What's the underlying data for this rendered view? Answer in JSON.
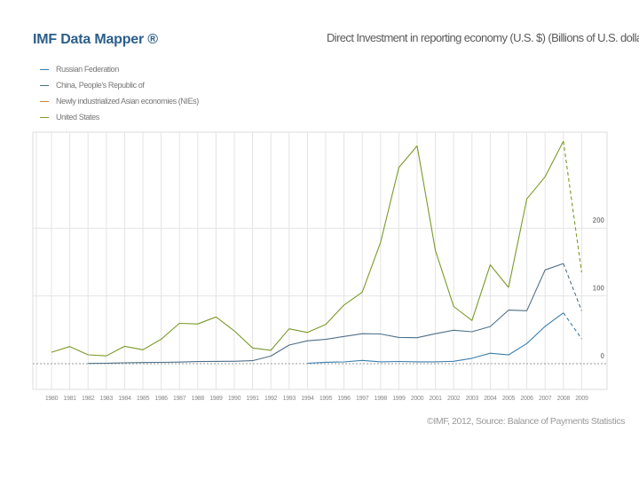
{
  "brand": "IMF Data Mapper ®",
  "source": "©IMF, 2012, Source: Balance of Payments Statistics",
  "chart_data": {
    "type": "line",
    "title": "Direct Investment in reporting economy (U.S. $) (Billions of U.S. dollars)",
    "x_tick_labels": [
      "1980",
      "1981",
      "1982",
      "1983",
      "1984",
      "1985",
      "1986",
      "1987",
      "1988",
      "1989",
      "1990",
      "1991",
      "1992",
      "1993",
      "1994",
      "1995",
      "1996",
      "1997",
      "1998",
      "1999",
      "2000",
      "2001",
      "2002",
      "2003",
      "2004",
      "2005",
      "2006",
      "2007",
      "2008",
      "2009"
    ],
    "y_ticks": [
      0,
      100,
      200
    ],
    "y_tick_labels": [
      "0",
      "100",
      "200"
    ],
    "ylim": [
      -40,
      340
    ],
    "grid": true,
    "series": [
      {
        "name": "Russian Federation",
        "color": "#3a7fae",
        "x": [
          1994,
          1995,
          1996,
          1997,
          1998,
          1999,
          2000,
          2001,
          2002,
          2003,
          2004,
          2005,
          2006,
          2007,
          2008,
          2009
        ],
        "values": [
          0.7,
          2.1,
          2.6,
          4.9,
          2.8,
          3.3,
          2.7,
          2.7,
          3.5,
          8.0,
          15.4,
          12.9,
          29.7,
          55.1,
          75.0,
          36.6
        ]
      },
      {
        "name": "China, People's Republic of",
        "color": "#4e6f87",
        "x": [
          1982,
          1983,
          1984,
          1985,
          1986,
          1987,
          1988,
          1989,
          1990,
          1991,
          1992,
          1993,
          1994,
          1995,
          1996,
          1997,
          1998,
          1999,
          2000,
          2001,
          2002,
          2003,
          2004,
          2005,
          2006,
          2007,
          2008,
          2009
        ],
        "values": [
          0.4,
          0.6,
          1.3,
          1.7,
          1.9,
          2.3,
          3.2,
          3.4,
          3.5,
          4.4,
          11.2,
          27.5,
          33.8,
          35.8,
          40.2,
          44.2,
          43.8,
          38.8,
          38.4,
          44.2,
          49.3,
          47.1,
          54.9,
          79.1,
          78.1,
          138.4,
          147.8,
          78.2
        ]
      },
      {
        "name": "Newly industrialized Asian economies (NIEs)",
        "color": "#c98a3a",
        "x": [],
        "values": []
      },
      {
        "name": "United States",
        "color": "#7a9a2a",
        "x": [
          1980,
          1981,
          1982,
          1983,
          1984,
          1985,
          1986,
          1987,
          1988,
          1989,
          1990,
          1991,
          1992,
          1993,
          1994,
          1995,
          1996,
          1997,
          1998,
          1999,
          2000,
          2001,
          2002,
          2003,
          2004,
          2005,
          2006,
          2007,
          2008,
          2009
        ],
        "values": [
          16.9,
          25.2,
          13.1,
          11.5,
          25.6,
          20.5,
          36.1,
          59.6,
          58.6,
          69.0,
          48.4,
          23.2,
          19.8,
          51.4,
          46.1,
          57.8,
          86.5,
          105.6,
          179.0,
          289.4,
          321.3,
          167.0,
          84.4,
          63.8,
          145.8,
          112.6,
          243.2,
          275.8,
          328.3,
          134.7
        ]
      }
    ]
  }
}
